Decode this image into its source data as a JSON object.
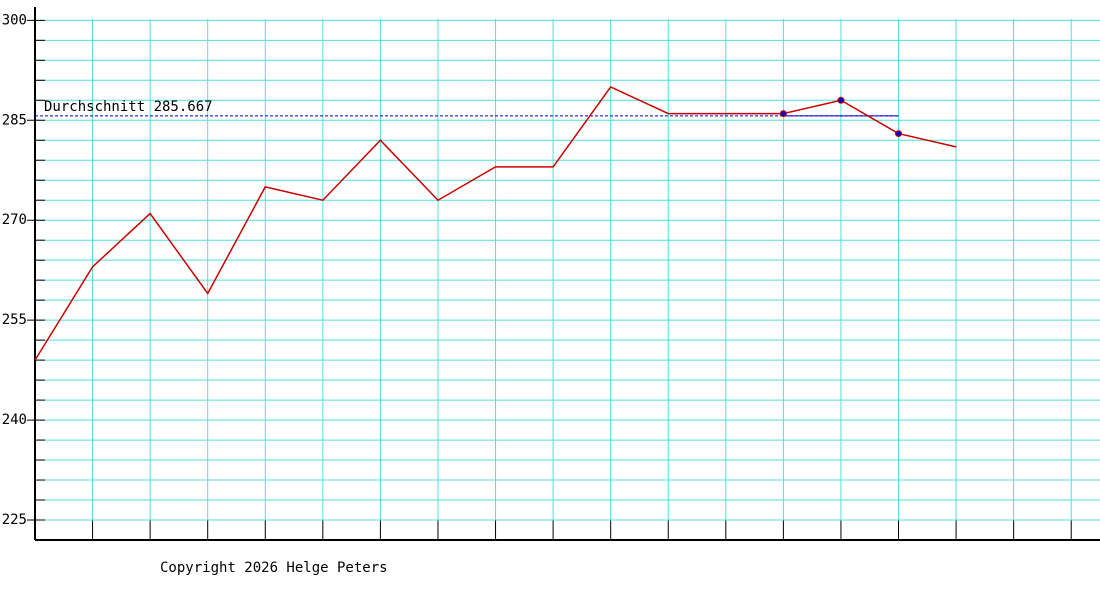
{
  "chart_data": {
    "type": "line",
    "categories": [
      null,
      null,
      null,
      null,
      null,
      null,
      null,
      null,
      null,
      null,
      null,
      null,
      null,
      null,
      null,
      null,
      null,
      null,
      null
    ],
    "values": [
      249,
      263,
      271,
      259,
      275,
      273,
      282,
      273,
      278,
      278,
      290,
      286,
      286,
      286,
      288,
      283,
      281,
      null,
      null
    ],
    "color": "#cc0000",
    "marker_color": "#0000cc",
    "markers": [
      13,
      14,
      15
    ],
    "average": {
      "label": "Durchschnitt 285.667",
      "value": 285.667,
      "color": "#0000cc"
    },
    "ylim": [
      222,
      302
    ],
    "yticks": [
      225,
      240,
      255,
      270,
      285,
      300
    ],
    "grid": true,
    "grid_color": "#55dddd",
    "copyright": "Copyright 2026 Helge Peters"
  }
}
